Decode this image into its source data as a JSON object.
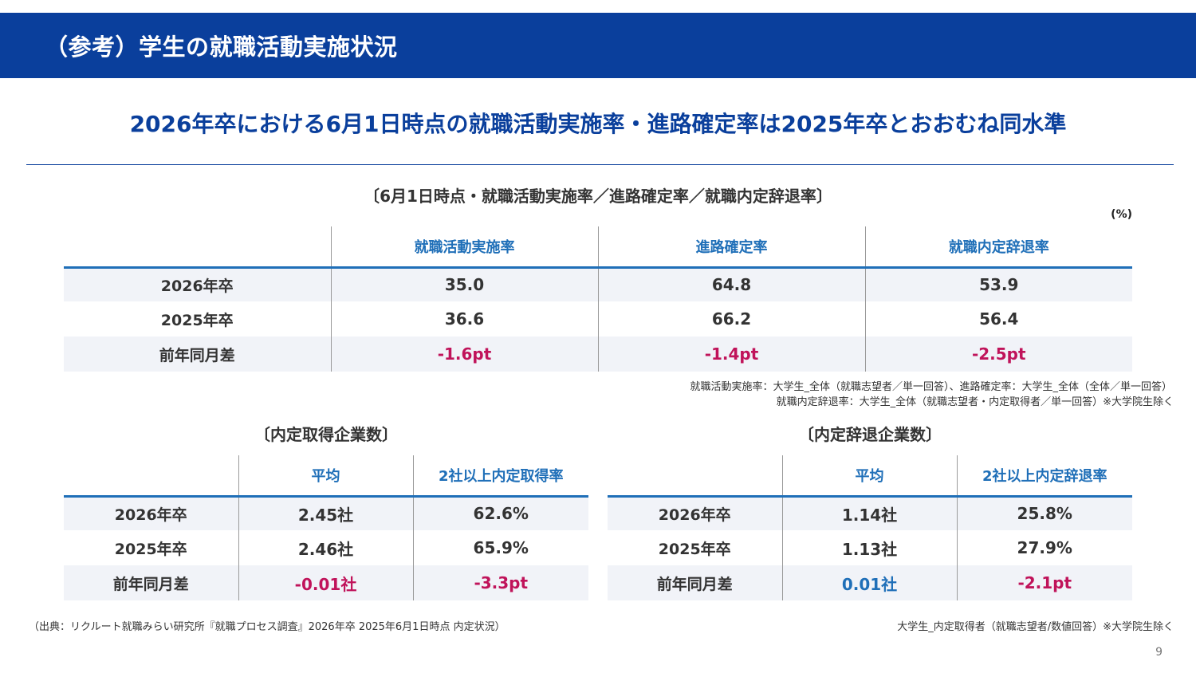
{
  "header": {
    "title": "（参考）学生の就職活動実施状況"
  },
  "headline": "2026年卒における6月1日時点の就職活動実施率・進路確定率は2025年卒とおおむね同水準",
  "top_section": {
    "title": "〔6月1日時点・就職活動実施率／進路確定率／就職内定辞退率〕",
    "unit": "(%)",
    "columns": [
      "就職活動実施率",
      "進路確定率",
      "就職内定辞退率"
    ],
    "rows": [
      {
        "label": "2026年卒",
        "values": [
          "35.0",
          "64.8",
          "53.9"
        ]
      },
      {
        "label": "2025年卒",
        "values": [
          "36.6",
          "66.2",
          "56.4"
        ]
      },
      {
        "label": "前年同月差",
        "values": [
          "-1.6pt",
          "-1.4pt",
          "-2.5pt"
        ]
      }
    ],
    "notes": [
      "就職活動実施率：大学生_全体（就職志望者／単一回答）、進路確定率：大学生_全体（全体／単一回答）",
      "就職内定辞退率：大学生_全体（就職志望者・内定取得者／単一回答）※大学院生除く"
    ]
  },
  "left_section": {
    "title": "〔内定取得企業数〕",
    "columns": [
      "平均",
      "2社以上内定取得率"
    ],
    "rows": [
      {
        "label": "2026年卒",
        "values": [
          "2.45社",
          "62.6%"
        ]
      },
      {
        "label": "2025年卒",
        "values": [
          "2.46社",
          "65.9%"
        ]
      },
      {
        "label": "前年同月差",
        "values": [
          "-0.01社",
          "-3.3pt"
        ]
      }
    ]
  },
  "right_section": {
    "title": "〔内定辞退企業数〕",
    "columns": [
      "平均",
      "2社以上内定辞退率"
    ],
    "rows": [
      {
        "label": "2026年卒",
        "values": [
          "1.14社",
          "25.8%"
        ]
      },
      {
        "label": "2025年卒",
        "values": [
          "1.13社",
          "27.9%"
        ]
      },
      {
        "label": "前年同月差",
        "values": [
          "0.01社",
          "-2.1pt"
        ]
      }
    ]
  },
  "footer": {
    "source": "（出典：リクルート就職みらい研究所『就職プロセス調査』2026年卒 2025年6月1日時点 内定状況）",
    "bottom_note": "大学生_内定取得者（就職志望者/数値回答）※大学院生除く",
    "page_number": "9"
  },
  "colors": {
    "brand": "#0a3f9c",
    "accent": "#1f6fb8",
    "negative": "#c0135a",
    "row_shade": "#f1f3f8"
  }
}
